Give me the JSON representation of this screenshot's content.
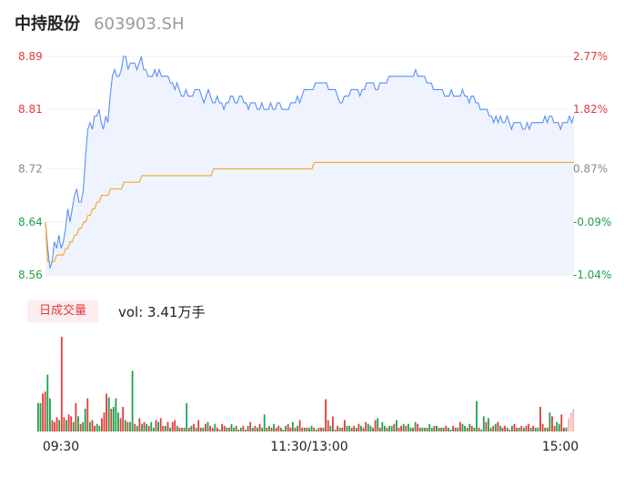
{
  "header": {
    "name": "中持股份",
    "code": "603903.SH"
  },
  "volume_panel": {
    "tag": "日成交量",
    "vol_label": "vol: 3.41万手"
  },
  "colors": {
    "price_line": "#5b8ff9",
    "avg_line": "#f5a623",
    "up": "#e23a3a",
    "down": "#1aa34a",
    "neutral": "#888888",
    "area": "#eef3fd"
  },
  "chart_data": [
    {
      "type": "line",
      "title": "",
      "series": [
        {
          "name": "",
          "values": [
            8.64,
            8.6,
            8.57,
            8.58,
            8.61,
            8.6,
            8.62,
            8.6,
            8.61,
            8.63,
            8.66,
            8.64,
            8.66,
            8.68,
            8.69,
            8.67,
            8.67,
            8.69,
            8.74,
            8.78,
            8.79,
            8.78,
            8.8,
            8.8,
            8.81,
            8.79,
            8.78,
            8.8,
            8.79,
            8.83,
            8.86,
            8.87,
            8.86,
            8.86,
            8.87,
            8.89,
            8.89,
            8.87,
            8.88,
            8.88,
            8.88,
            8.87,
            8.88,
            8.89,
            8.87,
            8.87,
            8.86,
            8.86,
            8.86,
            8.87,
            8.86,
            8.87,
            8.86,
            8.86,
            8.86,
            8.86,
            8.85,
            8.85,
            8.84,
            8.85,
            8.84,
            8.83,
            8.83,
            8.84,
            8.83,
            8.83,
            8.83,
            8.84,
            8.84,
            8.84,
            8.83,
            8.82,
            8.83,
            8.84,
            8.83,
            8.82,
            8.82,
            8.83,
            8.82,
            8.82,
            8.81,
            8.82,
            8.82,
            8.83,
            8.83,
            8.82,
            8.82,
            8.83,
            8.83,
            8.82,
            8.82,
            8.81,
            8.82,
            8.82,
            8.82,
            8.81,
            8.81,
            8.82,
            8.81,
            8.81,
            8.81,
            8.82,
            8.81,
            8.81,
            8.82,
            8.82,
            8.81,
            8.81,
            8.81,
            8.81,
            8.82,
            8.82,
            8.82,
            8.83,
            8.82,
            8.83,
            8.84,
            8.84,
            8.84,
            8.84,
            8.84,
            8.85,
            8.85,
            8.85,
            8.85,
            8.85,
            8.85,
            8.84,
            8.84,
            8.84,
            8.84,
            8.83,
            8.82,
            8.82,
            8.83,
            8.83,
            8.83,
            8.84,
            8.84,
            8.84,
            8.84,
            8.83,
            8.84,
            8.84,
            8.85,
            8.85,
            8.85,
            8.85,
            8.84,
            8.84,
            8.85,
            8.85,
            8.85,
            8.85,
            8.86,
            8.86,
            8.86,
            8.86,
            8.86,
            8.86,
            8.86,
            8.86,
            8.86,
            8.86,
            8.86,
            8.86,
            8.87,
            8.86,
            8.86,
            8.86,
            8.86,
            8.85,
            8.85,
            8.85,
            8.84,
            8.84,
            8.84,
            8.84,
            8.84,
            8.83,
            8.83,
            8.83,
            8.84,
            8.83,
            8.83,
            8.83,
            8.83,
            8.84,
            8.83,
            8.83,
            8.82,
            8.83,
            8.83,
            8.82,
            8.82,
            8.81,
            8.81,
            8.81,
            8.81,
            8.8,
            8.8,
            8.79,
            8.8,
            8.79,
            8.8,
            8.79,
            8.79,
            8.8,
            8.79,
            8.78,
            8.79,
            8.79,
            8.79,
            8.79,
            8.78,
            8.78,
            8.79,
            8.78,
            8.79,
            8.79,
            8.79,
            8.79,
            8.79,
            8.79,
            8.8,
            8.79,
            8.8,
            8.8,
            8.79,
            8.79,
            8.79,
            8.78,
            8.79,
            8.79,
            8.79,
            8.8,
            8.79,
            8.8
          ]
        },
        {
          "name": "",
          "values": [
            8.64,
            8.58,
            8.58,
            8.58,
            8.58,
            8.59,
            8.59,
            8.59,
            8.59,
            8.6,
            8.6,
            8.61,
            8.61,
            8.62,
            8.62,
            8.63,
            8.63,
            8.64,
            8.64,
            8.65,
            8.65,
            8.66,
            8.66,
            8.67,
            8.67,
            8.68,
            8.68,
            8.68,
            8.68,
            8.69,
            8.69,
            8.69,
            8.69,
            8.69,
            8.69,
            8.7,
            8.7,
            8.7,
            8.7,
            8.7,
            8.7,
            8.7,
            8.7,
            8.71,
            8.71,
            8.71,
            8.71,
            8.71,
            8.71,
            8.71,
            8.71,
            8.71,
            8.71,
            8.71,
            8.71,
            8.71,
            8.71,
            8.71,
            8.71,
            8.71,
            8.71,
            8.71,
            8.71,
            8.71,
            8.71,
            8.71,
            8.71,
            8.71,
            8.71,
            8.71,
            8.71,
            8.71,
            8.71,
            8.71,
            8.71,
            8.72,
            8.72,
            8.72,
            8.72,
            8.72,
            8.72,
            8.72,
            8.72,
            8.72,
            8.72,
            8.72,
            8.72,
            8.72,
            8.72,
            8.72,
            8.72,
            8.72,
            8.72,
            8.72,
            8.72,
            8.72,
            8.72,
            8.72,
            8.72,
            8.72,
            8.72,
            8.72,
            8.72,
            8.72,
            8.72,
            8.72,
            8.72,
            8.72,
            8.72,
            8.72,
            8.72,
            8.72,
            8.72,
            8.72,
            8.72,
            8.72,
            8.72,
            8.72,
            8.72,
            8.72,
            8.73,
            8.73,
            8.73,
            8.73,
            8.73,
            8.73,
            8.73,
            8.73,
            8.73,
            8.73,
            8.73,
            8.73,
            8.73,
            8.73,
            8.73,
            8.73,
            8.73,
            8.73,
            8.73,
            8.73,
            8.73,
            8.73,
            8.73,
            8.73,
            8.73,
            8.73,
            8.73,
            8.73,
            8.73,
            8.73,
            8.73,
            8.73,
            8.73,
            8.73,
            8.73,
            8.73,
            8.73,
            8.73,
            8.73,
            8.73,
            8.73,
            8.73,
            8.73,
            8.73,
            8.73,
            8.73,
            8.73,
            8.73,
            8.73,
            8.73,
            8.73,
            8.73,
            8.73,
            8.73,
            8.73,
            8.73,
            8.73,
            8.73,
            8.73,
            8.73,
            8.73,
            8.73,
            8.73,
            8.73,
            8.73,
            8.73,
            8.73,
            8.73,
            8.73,
            8.73,
            8.73,
            8.73,
            8.73,
            8.73,
            8.73,
            8.73,
            8.73,
            8.73,
            8.73,
            8.73,
            8.73,
            8.73,
            8.73,
            8.73,
            8.73,
            8.73,
            8.73,
            8.73,
            8.73,
            8.73,
            8.73,
            8.73,
            8.73,
            8.73,
            8.73,
            8.73,
            8.73,
            8.73,
            8.73,
            8.73,
            8.73,
            8.73,
            8.73,
            8.73,
            8.73,
            8.73,
            8.73,
            8.73,
            8.73,
            8.73,
            8.73,
            8.73,
            8.73,
            8.73,
            8.73,
            8.73,
            8.73
          ]
        }
      ],
      "ylim": [
        8.56,
        8.89
      ],
      "y_ticks_left": [
        8.89,
        8.81,
        8.72,
        8.64,
        8.56
      ],
      "y_ticks_right": [
        "2.77%",
        "1.82%",
        "0.87%",
        "-0.09%",
        "-1.04%"
      ],
      "x_ticks": [
        "09:30",
        "11:30/13:00",
        "15:00"
      ]
    },
    {
      "type": "bar",
      "title": "",
      "values": [
        30,
        30,
        40,
        42,
        60,
        35,
        12,
        10,
        15,
        12,
        100,
        15,
        12,
        18,
        16,
        10,
        30,
        16,
        8,
        10,
        24,
        35,
        10,
        12,
        6,
        8,
        6,
        14,
        20,
        40,
        36,
        24,
        26,
        35,
        20,
        14,
        26,
        12,
        10,
        10,
        64,
        8,
        6,
        14,
        8,
        10,
        8,
        6,
        10,
        4,
        12,
        10,
        14,
        6,
        6,
        10,
        4,
        10,
        12,
        6,
        4,
        4,
        4,
        30,
        4,
        6,
        8,
        4,
        12,
        4,
        4,
        8,
        10,
        6,
        4,
        8,
        4,
        2,
        8,
        6,
        4,
        4,
        8,
        4,
        6,
        2,
        4,
        6,
        2,
        6,
        10,
        4,
        6,
        4,
        8,
        4,
        18,
        4,
        6,
        4,
        8,
        4,
        6,
        4,
        2,
        6,
        8,
        4,
        10,
        4,
        6,
        12,
        4,
        4,
        4,
        4,
        6,
        4,
        2,
        4,
        4,
        4,
        34,
        12,
        6,
        16,
        2,
        6,
        4,
        4,
        12,
        6,
        6,
        4,
        6,
        4,
        8,
        6,
        4,
        10,
        8,
        6,
        4,
        12,
        14,
        4,
        10,
        6,
        4,
        6,
        6,
        8,
        12,
        4,
        6,
        8,
        6,
        8,
        4,
        4,
        10,
        8,
        4,
        4,
        4,
        4,
        8,
        4,
        6,
        6,
        4,
        4,
        4,
        6,
        4,
        2,
        6,
        4,
        4,
        10,
        8,
        6,
        4,
        8,
        6,
        4,
        32,
        4,
        2,
        16,
        10,
        14,
        4,
        6,
        8,
        10,
        6,
        4,
        6,
        4,
        2,
        6,
        8,
        4,
        4,
        6,
        4,
        6,
        8,
        4,
        6,
        4,
        4,
        26,
        8,
        4,
        4,
        20,
        16,
        6,
        10,
        8,
        18,
        4,
        4,
        14,
        20,
        24
      ],
      "colors": [
        "down",
        "down",
        "up",
        "up",
        "down",
        "down",
        "up",
        "up",
        "up",
        "down",
        "up",
        "up",
        "down",
        "up",
        "up",
        "down",
        "up",
        "down",
        "up",
        "down",
        "down",
        "up",
        "down",
        "up",
        "up",
        "down",
        "down",
        "up",
        "up",
        "up",
        "down",
        "up",
        "down",
        "down",
        "down",
        "up",
        "up",
        "down",
        "up",
        "down",
        "down",
        "up",
        "down",
        "up",
        "down",
        "up",
        "down",
        "up",
        "down",
        "down",
        "up",
        "down",
        "up",
        "up",
        "down",
        "up",
        "down",
        "up",
        "up",
        "down",
        "up",
        "up",
        "down",
        "down",
        "up",
        "down",
        "up",
        "down",
        "up",
        "up",
        "down",
        "up",
        "down",
        "up",
        "up",
        "down",
        "up",
        "down",
        "up",
        "up",
        "down",
        "up",
        "down",
        "down",
        "up",
        "down",
        "down",
        "up",
        "up",
        "down",
        "up",
        "down",
        "up",
        "down",
        "up",
        "down",
        "down",
        "up",
        "down",
        "up",
        "down",
        "up",
        "up",
        "down",
        "up",
        "down",
        "up",
        "up",
        "down",
        "up",
        "down",
        "up",
        "up",
        "down",
        "up",
        "down",
        "down",
        "up",
        "down",
        "up",
        "up",
        "down",
        "up",
        "up",
        "down",
        "up",
        "down",
        "up",
        "down",
        "up",
        "up",
        "down",
        "down",
        "up",
        "up",
        "down",
        "up",
        "down",
        "up",
        "up",
        "down",
        "down",
        "up",
        "up",
        "down",
        "up",
        "down",
        "down",
        "up",
        "down",
        "down",
        "up",
        "down",
        "up",
        "up",
        "down",
        "up",
        "down",
        "down",
        "up",
        "down",
        "up",
        "up",
        "down",
        "down",
        "up",
        "down",
        "down",
        "up",
        "down",
        "down",
        "up",
        "down",
        "up",
        "down",
        "down",
        "up",
        "up",
        "down",
        "up",
        "down",
        "down",
        "up",
        "down",
        "up",
        "down",
        "down",
        "up",
        "down",
        "down",
        "up",
        "down",
        "down",
        "up",
        "down",
        "up",
        "down",
        "up",
        "up",
        "down",
        "up",
        "down",
        "up",
        "up",
        "down",
        "up",
        "down",
        "up",
        "up",
        "down",
        "up",
        "down",
        "down",
        "up",
        "up",
        "down",
        "up",
        "down",
        "up",
        "up",
        "down",
        "down",
        "up",
        "up",
        "down",
        "neutral"
      ]
    }
  ]
}
